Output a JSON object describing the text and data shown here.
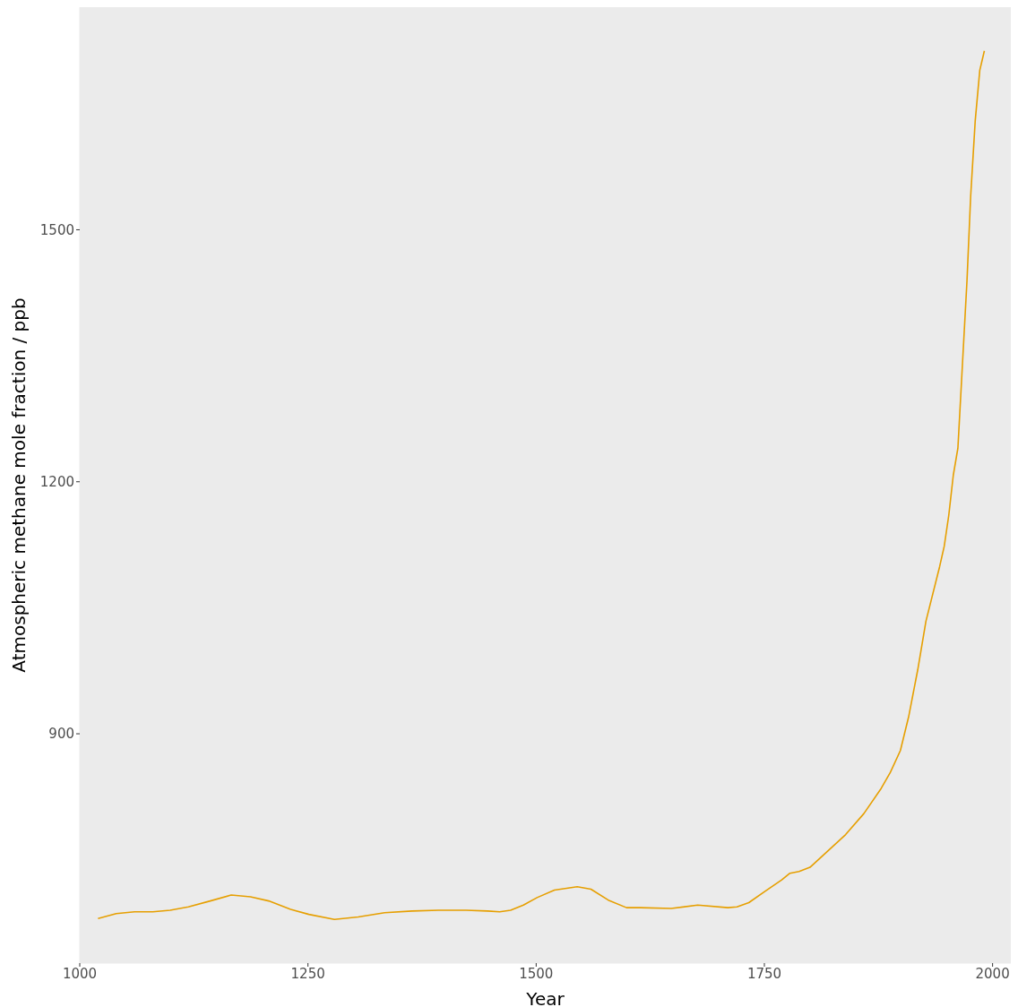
{
  "chart_data": {
    "type": "line",
    "xlabel": "Year",
    "ylabel": "Atmospheric methane mole fraction / ppb",
    "x": [
      1020,
      1040,
      1060,
      1080,
      1099,
      1119,
      1143,
      1166,
      1187,
      1207,
      1231,
      1251,
      1279,
      1305,
      1334,
      1364,
      1393,
      1423,
      1447,
      1460,
      1472,
      1486,
      1501,
      1520,
      1545,
      1560,
      1579,
      1599,
      1614,
      1648,
      1677,
      1710,
      1720,
      1733,
      1750,
      1769,
      1778,
      1788,
      1800,
      1839,
      1859,
      1878,
      1888,
      1899,
      1908,
      1918,
      1927,
      1942,
      1947,
      1952,
      1957,
      1962,
      1967,
      1972,
      1976,
      1981,
      1986,
      1991
    ],
    "series": [
      {
        "color": "#e69f00",
        "values": [
          680,
          686,
          688,
          688,
          690,
          694,
          701,
          708,
          706,
          701,
          691,
          685,
          679,
          682,
          687,
          689,
          690,
          690,
          689,
          688,
          690,
          696,
          705,
          714,
          718,
          715,
          702,
          693,
          693,
          692,
          696,
          693,
          694,
          699,
          712,
          726,
          734,
          736,
          741,
          780,
          805,
          835,
          854,
          880,
          920,
          976,
          1034,
          1099,
          1123,
          1160,
          1208,
          1240,
          1340,
          1440,
          1540,
          1630,
          1690,
          1713
        ]
      }
    ],
    "xlim": [
      1000,
      2020
    ],
    "xticks": [
      1000,
      1250,
      1500,
      1750,
      2000
    ],
    "ylim": [
      627,
      1765
    ],
    "yticks": [
      900,
      1200,
      1500
    ],
    "grid": false,
    "legend": false,
    "marker": "none",
    "line_style": "solid"
  }
}
